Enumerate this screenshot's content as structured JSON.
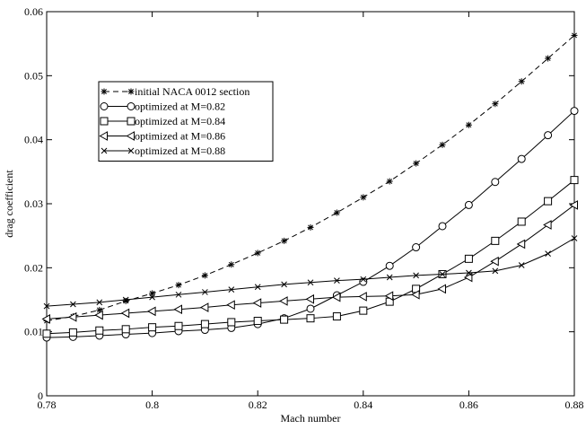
{
  "chart_data": {
    "type": "line",
    "title": "",
    "xlabel": "Mach number",
    "ylabel": "drag coefficient",
    "xlim": [
      0.78,
      0.88
    ],
    "ylim": [
      0,
      0.06
    ],
    "xticks": [
      0.78,
      0.8,
      0.82,
      0.84,
      0.86,
      0.88
    ],
    "xtick_labels": [
      "0.78",
      "0.8",
      "0.82",
      "0.84",
      "0.86",
      "0.88"
    ],
    "yticks": [
      0,
      0.01,
      0.02,
      0.03,
      0.04,
      0.05,
      0.06
    ],
    "ytick_labels": [
      "0",
      "0.01",
      "0.02",
      "0.03",
      "0.04",
      "0.05",
      "0.06"
    ],
    "grid": false,
    "legend_position": "upper-left",
    "x": [
      0.78,
      0.785,
      0.79,
      0.795,
      0.8,
      0.805,
      0.81,
      0.815,
      0.82,
      0.825,
      0.83,
      0.835,
      0.84,
      0.845,
      0.85,
      0.855,
      0.86,
      0.865,
      0.87,
      0.875,
      0.88
    ],
    "series": [
      {
        "name": "initial NACA 0012 section",
        "marker": "star",
        "dash": "dashed",
        "values": [
          0.0117,
          0.0124,
          0.0134,
          0.0148,
          0.016,
          0.0173,
          0.0188,
          0.0205,
          0.0223,
          0.0242,
          0.0263,
          0.0286,
          0.031,
          0.0335,
          0.0363,
          0.0392,
          0.0423,
          0.0456,
          0.0491,
          0.0527,
          0.0563
        ]
      },
      {
        "name": "optimized at M=0.82",
        "marker": "circle",
        "dash": "solid",
        "values": [
          0.0091,
          0.0092,
          0.0094,
          0.0096,
          0.0098,
          0.0101,
          0.0103,
          0.0106,
          0.0112,
          0.0121,
          0.0136,
          0.0157,
          0.0178,
          0.0203,
          0.0232,
          0.0265,
          0.0298,
          0.0334,
          0.037,
          0.0407,
          0.0445
        ]
      },
      {
        "name": "optimized at M=0.84",
        "marker": "square",
        "dash": "solid",
        "values": [
          0.0097,
          0.0099,
          0.0102,
          0.0104,
          0.0107,
          0.0109,
          0.0112,
          0.0115,
          0.0117,
          0.0119,
          0.0121,
          0.0124,
          0.0133,
          0.0147,
          0.0167,
          0.019,
          0.0214,
          0.0242,
          0.0272,
          0.0304,
          0.0337
        ]
      },
      {
        "name": "optimized at M=0.86",
        "marker": "triangle-left",
        "dash": "solid",
        "values": [
          0.012,
          0.0123,
          0.0126,
          0.0129,
          0.0132,
          0.0135,
          0.0138,
          0.0142,
          0.0145,
          0.0148,
          0.0151,
          0.0154,
          0.0155,
          0.0156,
          0.0158,
          0.0167,
          0.0185,
          0.021,
          0.0237,
          0.0267,
          0.0298
        ]
      },
      {
        "name": "optimized at M=0.88",
        "marker": "x",
        "dash": "solid",
        "values": [
          0.014,
          0.0143,
          0.0146,
          0.015,
          0.0154,
          0.0158,
          0.0162,
          0.0166,
          0.017,
          0.0174,
          0.0177,
          0.018,
          0.0182,
          0.0185,
          0.0188,
          0.019,
          0.0192,
          0.0195,
          0.0204,
          0.0222,
          0.0246
        ]
      }
    ]
  }
}
